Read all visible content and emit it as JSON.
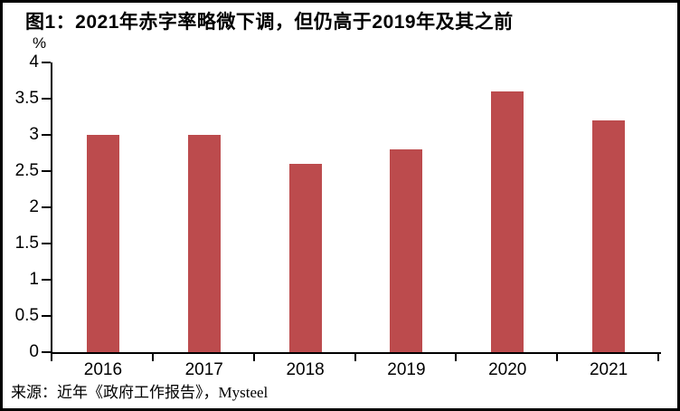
{
  "page": {
    "title": "图1：2021年赤字率略微下调，但仍高于2019年及其之前",
    "unit_label": "%",
    "source": "来源：近年《政府工作报告》，Mysteel"
  },
  "chart_data": {
    "type": "bar",
    "title": "图1：2021年赤字率略微下调，但仍高于2019年及其之前",
    "categories": [
      "2016",
      "2017",
      "2018",
      "2019",
      "2020",
      "2021"
    ],
    "values": [
      3.0,
      3.0,
      2.6,
      2.8,
      3.6,
      3.2
    ],
    "xlabel": "",
    "ylabel": "%",
    "ylim": [
      0,
      4
    ],
    "yticks": [
      0,
      0.5,
      1,
      1.5,
      2,
      2.5,
      3,
      3.5,
      4
    ],
    "grid": false,
    "legend_position": "none",
    "source_note": "来源：近年《政府工作报告》，Mysteel"
  },
  "colors": {
    "bar": "#bc4b4d",
    "axis": "#000000",
    "text": "#000000",
    "background": "#ffffff",
    "frame_border": "#000000"
  }
}
